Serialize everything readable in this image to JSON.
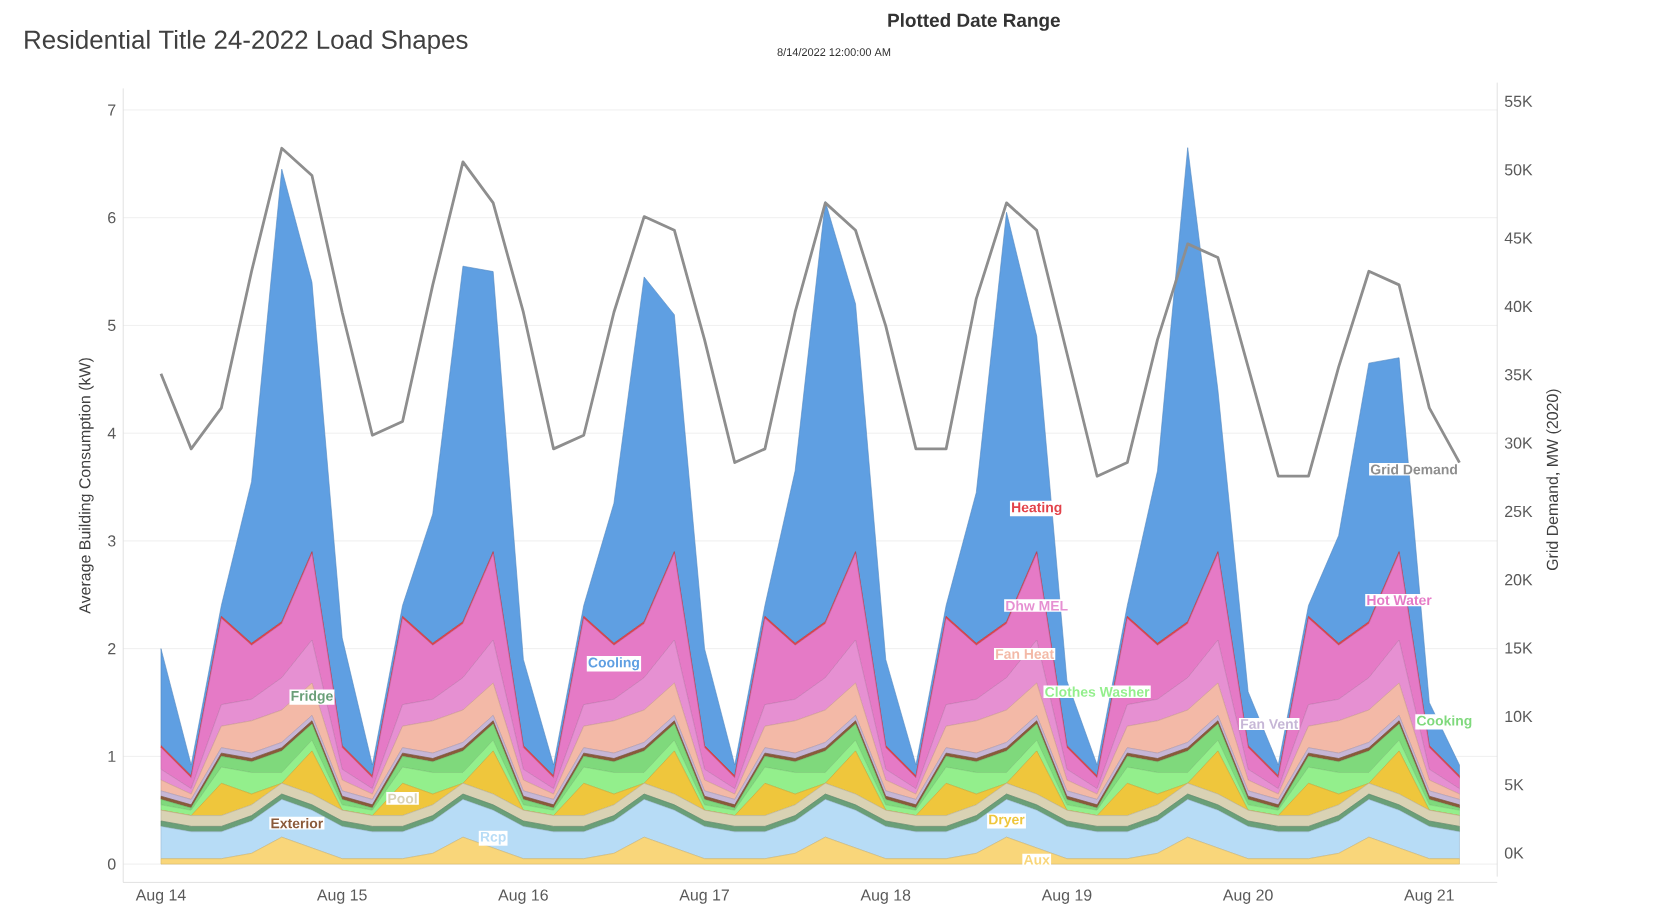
{
  "chart_data": {
    "type": "area",
    "stacked": true,
    "title": "Residential Title 24-2022 Load Shapes",
    "annotations": [
      "Plotted Date Range",
      "8/14/2022 12:00:00 AM"
    ],
    "ylabel": "Average Building Consumption (kW)",
    "y2label": "Grid Demand, MW (2020)",
    "grid": "y",
    "legend": false,
    "xlim": [
      "2022-08-13T19:00",
      "2022-08-21T09:00"
    ],
    "xticks": [
      {
        "value": "2022-08-14",
        "label": "Aug 14"
      },
      {
        "value": "2022-08-15",
        "label": "Aug 15"
      },
      {
        "value": "2022-08-16",
        "label": "Aug 16"
      },
      {
        "value": "2022-08-17",
        "label": "Aug 17"
      },
      {
        "value": "2022-08-18",
        "label": "Aug 18"
      },
      {
        "value": "2022-08-19",
        "label": "Aug 19"
      },
      {
        "value": "2022-08-20",
        "label": "Aug 20"
      },
      {
        "value": "2022-08-21",
        "label": "Aug 21"
      }
    ],
    "ylim": [
      -0.17,
      7.2
    ],
    "yticks": [
      0,
      1,
      2,
      3,
      4,
      5,
      6,
      7
    ],
    "y2lim": [
      -1300,
      56800
    ],
    "y2ticks": [
      {
        "value": 0,
        "label": "0K"
      },
      {
        "value": 5000,
        "label": "5K"
      },
      {
        "value": 10000,
        "label": "10K"
      },
      {
        "value": 15000,
        "label": "15K"
      },
      {
        "value": 20000,
        "label": "20K"
      },
      {
        "value": 25000,
        "label": "25K"
      },
      {
        "value": 30000,
        "label": "30K"
      },
      {
        "value": 35000,
        "label": "35K"
      },
      {
        "value": 40000,
        "label": "40K"
      },
      {
        "value": 45000,
        "label": "45K"
      },
      {
        "value": 50000,
        "label": "50K"
      },
      {
        "value": 55000,
        "label": "55K"
      }
    ],
    "x": [
      "2022-08-14T00:00",
      "2022-08-14T04:00",
      "2022-08-14T08:00",
      "2022-08-14T12:00",
      "2022-08-14T16:00",
      "2022-08-14T20:00",
      "2022-08-15T00:00",
      "2022-08-15T04:00",
      "2022-08-15T08:00",
      "2022-08-15T12:00",
      "2022-08-15T16:00",
      "2022-08-15T20:00",
      "2022-08-16T00:00",
      "2022-08-16T04:00",
      "2022-08-16T08:00",
      "2022-08-16T12:00",
      "2022-08-16T16:00",
      "2022-08-16T20:00",
      "2022-08-17T00:00",
      "2022-08-17T04:00",
      "2022-08-17T08:00",
      "2022-08-17T12:00",
      "2022-08-17T16:00",
      "2022-08-17T20:00",
      "2022-08-18T00:00",
      "2022-08-18T04:00",
      "2022-08-18T08:00",
      "2022-08-18T12:00",
      "2022-08-18T16:00",
      "2022-08-18T20:00",
      "2022-08-19T00:00",
      "2022-08-19T04:00",
      "2022-08-19T08:00",
      "2022-08-19T12:00",
      "2022-08-19T16:00",
      "2022-08-19T20:00",
      "2022-08-20T00:00",
      "2022-08-20T04:00",
      "2022-08-20T08:00",
      "2022-08-20T12:00",
      "2022-08-20T16:00",
      "2022-08-20T20:00",
      "2022-08-21T00:00",
      "2022-08-21T04:00"
    ],
    "series": [
      {
        "name": "Aux",
        "color": "#f9d67a",
        "values": [
          0.05,
          0.05,
          0.05,
          0.1,
          0.25,
          0.15,
          0.05,
          0.05,
          0.05,
          0.1,
          0.25,
          0.15,
          0.05,
          0.05,
          0.05,
          0.1,
          0.25,
          0.15,
          0.05,
          0.05,
          0.05,
          0.1,
          0.25,
          0.15,
          0.05,
          0.05,
          0.05,
          0.1,
          0.25,
          0.15,
          0.05,
          0.05,
          0.05,
          0.1,
          0.25,
          0.15,
          0.05,
          0.05,
          0.05,
          0.1,
          0.25,
          0.15,
          0.05,
          0.05
        ]
      },
      {
        "name": "Rcp",
        "color": "#b7dcf6",
        "values": [
          0.3,
          0.25,
          0.25,
          0.3,
          0.35,
          0.35,
          0.3,
          0.25,
          0.25,
          0.3,
          0.35,
          0.35,
          0.3,
          0.25,
          0.25,
          0.3,
          0.35,
          0.35,
          0.3,
          0.25,
          0.25,
          0.3,
          0.35,
          0.35,
          0.3,
          0.25,
          0.25,
          0.3,
          0.35,
          0.35,
          0.3,
          0.25,
          0.25,
          0.3,
          0.35,
          0.35,
          0.3,
          0.25,
          0.25,
          0.3,
          0.35,
          0.35,
          0.3,
          0.25
        ]
      },
      {
        "name": "Fridge",
        "color": "#6a9f78",
        "values": [
          0.05,
          0.05,
          0.05,
          0.05,
          0.05,
          0.05,
          0.05,
          0.05,
          0.05,
          0.05,
          0.05,
          0.05,
          0.05,
          0.05,
          0.05,
          0.05,
          0.05,
          0.05,
          0.05,
          0.05,
          0.05,
          0.05,
          0.05,
          0.05,
          0.05,
          0.05,
          0.05,
          0.05,
          0.05,
          0.05,
          0.05,
          0.05,
          0.05,
          0.05,
          0.05,
          0.05,
          0.05,
          0.05,
          0.05,
          0.05,
          0.05,
          0.05,
          0.05,
          0.05
        ]
      },
      {
        "name": "Pool",
        "color": "#d9d2b4",
        "values": [
          0.1,
          0.1,
          0.1,
          0.1,
          0.1,
          0.1,
          0.1,
          0.1,
          0.1,
          0.1,
          0.1,
          0.1,
          0.1,
          0.1,
          0.1,
          0.1,
          0.1,
          0.1,
          0.1,
          0.1,
          0.1,
          0.1,
          0.1,
          0.1,
          0.1,
          0.1,
          0.1,
          0.1,
          0.1,
          0.1,
          0.1,
          0.1,
          0.1,
          0.1,
          0.1,
          0.1,
          0.1,
          0.1,
          0.1,
          0.1,
          0.1,
          0.1,
          0.1,
          0.1
        ]
      },
      {
        "name": "Dryer",
        "color": "#efc63c",
        "values": [
          0,
          0,
          0.3,
          0.1,
          0,
          0.4,
          0,
          0,
          0.3,
          0.1,
          0,
          0.4,
          0,
          0,
          0.3,
          0.1,
          0,
          0.4,
          0,
          0,
          0.3,
          0.1,
          0,
          0.4,
          0,
          0,
          0.3,
          0.1,
          0,
          0.4,
          0,
          0,
          0.3,
          0.1,
          0,
          0.4,
          0,
          0,
          0.3,
          0.1,
          0,
          0.4,
          0,
          0
        ]
      },
      {
        "name": "Clothes Washer",
        "color": "#93ef8c",
        "values": [
          0.05,
          0.05,
          0.15,
          0.2,
          0.1,
          0.1,
          0.05,
          0.05,
          0.15,
          0.2,
          0.1,
          0.1,
          0.05,
          0.05,
          0.15,
          0.2,
          0.1,
          0.1,
          0.05,
          0.05,
          0.15,
          0.2,
          0.1,
          0.1,
          0.05,
          0.05,
          0.15,
          0.2,
          0.1,
          0.1,
          0.05,
          0.05,
          0.15,
          0.2,
          0.1,
          0.1,
          0.05,
          0.05,
          0.15,
          0.2,
          0.1,
          0.1,
          0.05,
          0.05
        ]
      },
      {
        "name": "Cooking",
        "color": "#7fd97c",
        "values": [
          0.05,
          0.02,
          0.1,
          0.1,
          0.2,
          0.15,
          0.05,
          0.02,
          0.1,
          0.1,
          0.2,
          0.15,
          0.05,
          0.02,
          0.1,
          0.1,
          0.2,
          0.15,
          0.05,
          0.02,
          0.1,
          0.1,
          0.2,
          0.15,
          0.05,
          0.02,
          0.1,
          0.1,
          0.2,
          0.15,
          0.05,
          0.02,
          0.1,
          0.1,
          0.2,
          0.15,
          0.05,
          0.02,
          0.1,
          0.1,
          0.2,
          0.15,
          0.05,
          0.02
        ]
      },
      {
        "name": "Exterior",
        "color": "#8a5a3a",
        "values": [
          0.03,
          0.03,
          0.03,
          0.03,
          0.03,
          0.03,
          0.03,
          0.03,
          0.03,
          0.03,
          0.03,
          0.03,
          0.03,
          0.03,
          0.03,
          0.03,
          0.03,
          0.03,
          0.03,
          0.03,
          0.03,
          0.03,
          0.03,
          0.03,
          0.03,
          0.03,
          0.03,
          0.03,
          0.03,
          0.03,
          0.03,
          0.03,
          0.03,
          0.03,
          0.03,
          0.03,
          0.03,
          0.03,
          0.03,
          0.03,
          0.03,
          0.03,
          0.03,
          0.03
        ]
      },
      {
        "name": "Fan Vent",
        "color": "#c6b6d6",
        "values": [
          0.05,
          0.05,
          0.05,
          0.05,
          0.05,
          0.05,
          0.05,
          0.05,
          0.05,
          0.05,
          0.05,
          0.05,
          0.05,
          0.05,
          0.05,
          0.05,
          0.05,
          0.05,
          0.05,
          0.05,
          0.05,
          0.05,
          0.05,
          0.05,
          0.05,
          0.05,
          0.05,
          0.05,
          0.05,
          0.05,
          0.05,
          0.05,
          0.05,
          0.05,
          0.05,
          0.05,
          0.05,
          0.05,
          0.05,
          0.05,
          0.05,
          0.05,
          0.05,
          0.05
        ]
      },
      {
        "name": "Fan Heat",
        "color": "#f3b9a7",
        "values": [
          0.1,
          0.05,
          0.2,
          0.3,
          0.3,
          0.3,
          0.1,
          0.05,
          0.2,
          0.3,
          0.3,
          0.3,
          0.1,
          0.05,
          0.2,
          0.3,
          0.3,
          0.3,
          0.1,
          0.05,
          0.2,
          0.3,
          0.3,
          0.3,
          0.1,
          0.05,
          0.2,
          0.3,
          0.3,
          0.3,
          0.1,
          0.05,
          0.2,
          0.3,
          0.3,
          0.3,
          0.1,
          0.05,
          0.2,
          0.3,
          0.3,
          0.3,
          0.1,
          0.05
        ]
      },
      {
        "name": "Dhw MEL",
        "color": "#e690d2",
        "values": [
          0.1,
          0.05,
          0.2,
          0.2,
          0.3,
          0.4,
          0.1,
          0.05,
          0.2,
          0.2,
          0.3,
          0.4,
          0.1,
          0.05,
          0.2,
          0.2,
          0.3,
          0.4,
          0.1,
          0.05,
          0.2,
          0.2,
          0.3,
          0.4,
          0.1,
          0.05,
          0.2,
          0.2,
          0.3,
          0.4,
          0.1,
          0.05,
          0.2,
          0.2,
          0.3,
          0.4,
          0.1,
          0.05,
          0.2,
          0.2,
          0.3,
          0.4,
          0.1,
          0.05
        ]
      },
      {
        "name": "Hot Water",
        "color": "#e57ac6",
        "values": [
          0.2,
          0.1,
          0.8,
          0.5,
          0.5,
          0.8,
          0.2,
          0.1,
          0.8,
          0.5,
          0.5,
          0.8,
          0.2,
          0.1,
          0.8,
          0.5,
          0.5,
          0.8,
          0.2,
          0.1,
          0.8,
          0.5,
          0.5,
          0.8,
          0.2,
          0.1,
          0.8,
          0.5,
          0.5,
          0.8,
          0.2,
          0.1,
          0.8,
          0.5,
          0.5,
          0.8,
          0.2,
          0.1,
          0.8,
          0.5,
          0.5,
          0.8,
          0.2,
          0.1
        ]
      },
      {
        "name": "Heating",
        "color": "#e2424a",
        "values": [
          0.02,
          0.02,
          0.02,
          0.02,
          0.02,
          0.02,
          0.02,
          0.02,
          0.02,
          0.02,
          0.02,
          0.02,
          0.02,
          0.02,
          0.02,
          0.02,
          0.02,
          0.02,
          0.02,
          0.02,
          0.02,
          0.02,
          0.02,
          0.02,
          0.02,
          0.02,
          0.02,
          0.02,
          0.02,
          0.02,
          0.02,
          0.02,
          0.02,
          0.02,
          0.02,
          0.02,
          0.02,
          0.02,
          0.02,
          0.02,
          0.02,
          0.02,
          0.02,
          0.02
        ]
      },
      {
        "name": "Cooling",
        "color": "#5f9fe2",
        "values": [
          0.9,
          0.1,
          0.1,
          1.5,
          4.2,
          2.5,
          1.0,
          0.1,
          0.1,
          1.2,
          3.3,
          2.6,
          0.8,
          0.1,
          0.1,
          1.3,
          3.2,
          2.2,
          0.9,
          0.1,
          0.1,
          1.6,
          3.9,
          2.3,
          0.8,
          0.1,
          0.1,
          1.4,
          3.8,
          2.0,
          0.6,
          0.1,
          0.1,
          1.6,
          4.4,
          1.5,
          0.5,
          0.1,
          0.1,
          1.0,
          2.4,
          1.8,
          0.4,
          0.1
        ]
      },
      {
        "name": "Grid Demand",
        "type": "line",
        "axis": "y2",
        "color": "#8e8e8e",
        "values": [
          35500,
          30000,
          33000,
          43000,
          52000,
          50000,
          40000,
          31000,
          32000,
          42000,
          51000,
          48000,
          40000,
          30000,
          31000,
          40000,
          47000,
          46000,
          38000,
          29000,
          30000,
          40000,
          48000,
          46000,
          39000,
          30000,
          30000,
          41000,
          48000,
          46000,
          37000,
          28000,
          29000,
          38000,
          45000,
          44000,
          36000,
          28000,
          28000,
          36000,
          43000,
          42000,
          33000,
          29000
        ]
      }
    ]
  }
}
